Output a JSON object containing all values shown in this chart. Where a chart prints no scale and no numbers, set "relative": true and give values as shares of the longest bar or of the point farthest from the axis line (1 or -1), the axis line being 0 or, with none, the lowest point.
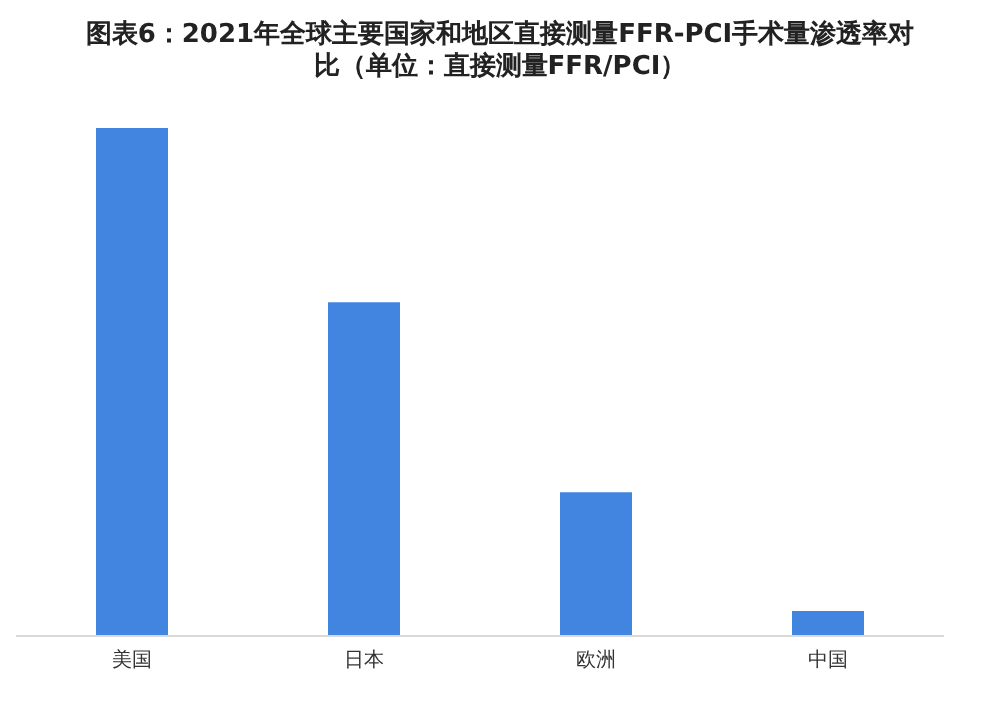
{
  "chart_data": {
    "type": "bar",
    "title": "图表6：2021年全球主要国家和地区直接测量FFR-PCI手术量渗透率对比（单位：直接测量FFR/PCI）",
    "categories": [
      "美国",
      "日本",
      "欧洲",
      "中国"
    ],
    "values": [
      1,
      0.657,
      0.283,
      0.049
    ],
    "color": "#4285e0",
    "relative": true
  }
}
